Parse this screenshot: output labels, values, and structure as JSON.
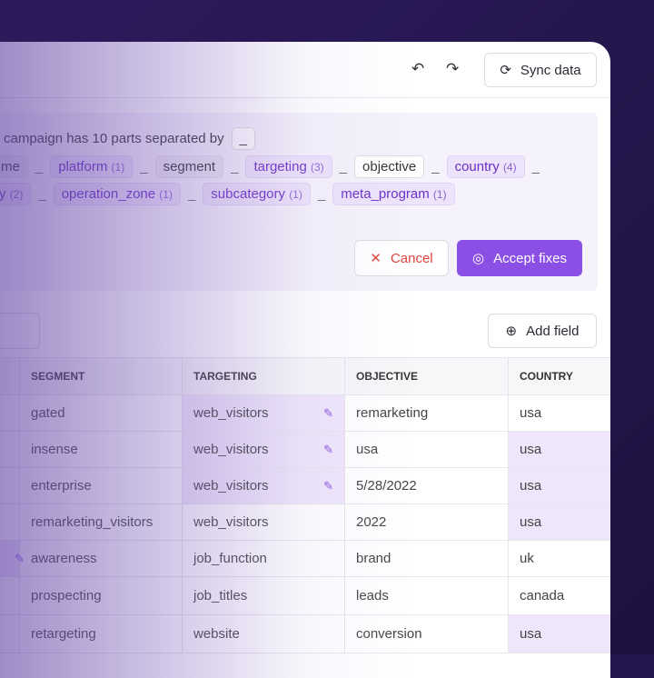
{
  "header": {
    "undo_icon": "undo-icon",
    "redo_icon": "redo-icon",
    "sync_label": "Sync data"
  },
  "panel": {
    "summary": "campaign has 10 parts separated by",
    "separator": "_",
    "chips_row1": [
      {
        "label": "me",
        "count": ""
      },
      {
        "label": "platform",
        "count": "(1)"
      },
      {
        "label": "segment",
        "count": ""
      },
      {
        "label": "targeting",
        "count": "(3)"
      },
      {
        "label": "objective",
        "count": ""
      },
      {
        "label": "country",
        "count": "(4)"
      }
    ],
    "chips_row2": [
      {
        "label": "y",
        "count": "(2)"
      },
      {
        "label": "operation_zone",
        "count": "(1)"
      },
      {
        "label": "subcategory",
        "count": "(1)"
      },
      {
        "label": "meta_program",
        "count": "(1)"
      }
    ],
    "cancel_label": "Cancel",
    "accept_label": "Accept fixes"
  },
  "add_field_label": "Add field",
  "table": {
    "headers": [
      "SEGMENT",
      "TARGETING",
      "OBJECTIVE",
      "COUNTRY"
    ],
    "rows": [
      [
        "gated",
        "web_visitors",
        "remarketing",
        "usa"
      ],
      [
        "insense",
        "web_visitors",
        "usa",
        "usa"
      ],
      [
        "enterprise",
        "web_visitors",
        "5/28/2022",
        "usa"
      ],
      [
        "remarketing_visitors",
        "web_visitors",
        "2022",
        "usa"
      ],
      [
        "awareness",
        "job_function",
        "brand",
        "uk"
      ],
      [
        "prospecting",
        "job_titles",
        "leads",
        "canada"
      ],
      [
        "retargeting",
        "website",
        "conversion",
        "usa"
      ]
    ]
  },
  "colors": {
    "accent": "#8b4fe6",
    "cancel": "#e0443a",
    "background": "#26164f"
  }
}
